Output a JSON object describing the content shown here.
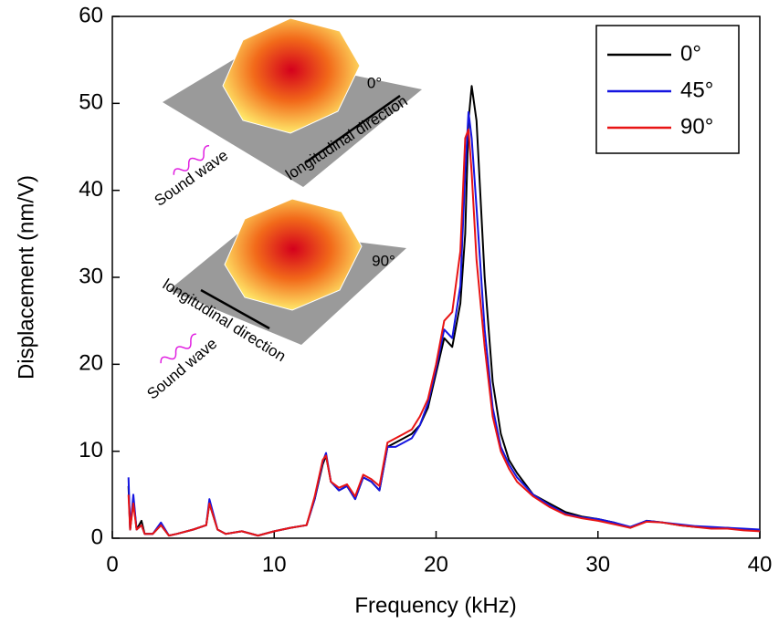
{
  "chart_data": {
    "type": "line",
    "xlabel": "Frequency (kHz)",
    "ylabel": "Displacement (nm/V)",
    "xlim": [
      0,
      40
    ],
    "xticks": [
      0,
      10,
      20,
      30,
      40
    ],
    "ylim": [
      0,
      60
    ],
    "yticks": [
      0,
      10,
      20,
      30,
      40,
      50,
      60
    ],
    "legend": "upper right",
    "x": [
      1,
      1.1,
      1.3,
      1.5,
      1.8,
      2,
      2.5,
      3,
      3.5,
      4,
      5,
      5.8,
      6,
      6.5,
      7,
      8,
      9,
      10,
      11,
      12,
      12.5,
      13,
      13.2,
      13.5,
      14,
      14.5,
      15,
      15.5,
      16,
      16.5,
      17,
      17.5,
      18,
      18.5,
      19,
      19.5,
      20,
      20.5,
      21,
      21.5,
      21.8,
      22,
      22.2,
      22.5,
      23,
      23.5,
      24,
      24.5,
      25,
      26,
      27,
      28,
      29,
      30,
      31,
      32,
      33,
      34,
      35,
      36,
      37,
      38,
      39,
      40
    ],
    "series": [
      {
        "name": "0°",
        "color": "#000000",
        "values": [
          6,
          1,
          4.5,
          1,
          2,
          0.5,
          0.5,
          1.5,
          0.3,
          0.5,
          1,
          1.5,
          4,
          1,
          0.5,
          0.8,
          0.3,
          0.8,
          1.2,
          1.5,
          4.5,
          8.5,
          9.5,
          6.5,
          5.5,
          6,
          4.5,
          7,
          6.5,
          5.5,
          10.5,
          11,
          11.5,
          12,
          13,
          15,
          19,
          23,
          22,
          27,
          35,
          48,
          52,
          48,
          30,
          18,
          12,
          9,
          7.5,
          5,
          4,
          3,
          2.5,
          2.2,
          1.8,
          1.2,
          2,
          1.8,
          1.5,
          1.3,
          1.2,
          1.2,
          1,
          0.9
        ]
      },
      {
        "name": "45°",
        "color": "#1515e0",
        "values": [
          7,
          1,
          5,
          1,
          1.5,
          0.5,
          0.5,
          1.8,
          0.3,
          0.5,
          1,
          1.5,
          4.5,
          1,
          0.5,
          0.8,
          0.3,
          0.8,
          1.2,
          1.5,
          4.5,
          8.8,
          9.8,
          6.5,
          5.5,
          6,
          4.5,
          7,
          6.5,
          5.5,
          10.5,
          10.5,
          11,
          11.5,
          13,
          15.5,
          19.5,
          24,
          23,
          29,
          42,
          49,
          46,
          38,
          24,
          15,
          10.5,
          8.5,
          7,
          5,
          3.8,
          2.8,
          2.4,
          2.2,
          1.8,
          1.3,
          2,
          1.8,
          1.6,
          1.4,
          1.3,
          1.2,
          1.1,
          1.0
        ]
      },
      {
        "name": "90°",
        "color": "#e81414",
        "values": [
          5,
          1,
          4,
          1,
          1.5,
          0.5,
          0.5,
          1.5,
          0.3,
          0.5,
          1,
          1.5,
          4,
          1,
          0.5,
          0.8,
          0.3,
          0.8,
          1.2,
          1.5,
          4.8,
          9,
          9.5,
          6.5,
          5.8,
          6.2,
          4.8,
          7.3,
          6.8,
          6,
          11,
          11.5,
          12,
          12.5,
          14,
          16,
          20,
          25,
          26,
          33,
          46,
          47,
          42,
          32,
          22,
          14,
          10,
          8,
          6.5,
          4.8,
          3.6,
          2.7,
          2.3,
          2,
          1.6,
          1.2,
          1.9,
          1.8,
          1.5,
          1.3,
          1.1,
          1.1,
          0.9,
          0.8
        ]
      }
    ],
    "annotations": [
      "0°",
      "longitudinal direction",
      "Sound wave",
      "90°",
      "longitudinal direction",
      "Sound wave"
    ]
  }
}
